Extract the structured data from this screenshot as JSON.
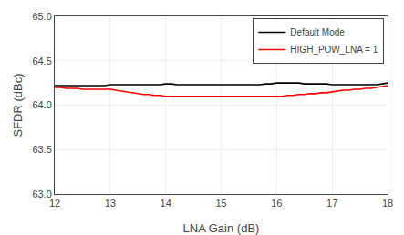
{
  "chart_data": {
    "type": "line",
    "xlabel": "LNA Gain (dB)",
    "ylabel": "SFDR (dBc)",
    "x": [
      12.0,
      12.1,
      12.2,
      12.3,
      12.4,
      12.5,
      12.6,
      12.7,
      12.8,
      12.9,
      13.0,
      13.1,
      13.2,
      13.3,
      13.4,
      13.5,
      13.6,
      13.7,
      13.8,
      13.9,
      14.0,
      14.1,
      14.2,
      14.3,
      14.4,
      14.5,
      14.6,
      14.7,
      14.8,
      14.9,
      15.0,
      15.1,
      15.2,
      15.3,
      15.4,
      15.5,
      15.6,
      15.7,
      15.8,
      15.9,
      16.0,
      16.1,
      16.2,
      16.3,
      16.4,
      16.5,
      16.6,
      16.7,
      16.8,
      16.9,
      17.0,
      17.1,
      17.2,
      17.3,
      17.4,
      17.5,
      17.6,
      17.7,
      17.8,
      17.9,
      18.0
    ],
    "series": [
      {
        "name": "Default Mode",
        "color": "black",
        "values": [
          64.22,
          64.22,
          64.22,
          64.22,
          64.22,
          64.22,
          64.22,
          64.22,
          64.22,
          64.22,
          64.23,
          64.23,
          64.23,
          64.23,
          64.23,
          64.23,
          64.23,
          64.23,
          64.23,
          64.23,
          64.24,
          64.24,
          64.23,
          64.23,
          64.23,
          64.23,
          64.23,
          64.23,
          64.23,
          64.23,
          64.23,
          64.23,
          64.23,
          64.23,
          64.23,
          64.23,
          64.23,
          64.23,
          64.24,
          64.24,
          64.25,
          64.25,
          64.25,
          64.25,
          64.25,
          64.24,
          64.24,
          64.24,
          64.24,
          64.24,
          64.23,
          64.23,
          64.23,
          64.23,
          64.23,
          64.23,
          64.23,
          64.23,
          64.23,
          64.24,
          64.25
        ]
      },
      {
        "name": "HIGH_POW_LNA = 1",
        "color": "red",
        "values": [
          64.2,
          64.2,
          64.19,
          64.19,
          64.19,
          64.18,
          64.18,
          64.18,
          64.18,
          64.18,
          64.18,
          64.17,
          64.16,
          64.15,
          64.14,
          64.13,
          64.12,
          64.12,
          64.11,
          64.11,
          64.1,
          64.1,
          64.1,
          64.1,
          64.1,
          64.1,
          64.1,
          64.1,
          64.1,
          64.1,
          64.1,
          64.1,
          64.1,
          64.1,
          64.1,
          64.1,
          64.1,
          64.1,
          64.1,
          64.1,
          64.1,
          64.1,
          64.11,
          64.11,
          64.12,
          64.12,
          64.13,
          64.13,
          64.14,
          64.14,
          64.15,
          64.16,
          64.17,
          64.17,
          64.18,
          64.18,
          64.19,
          64.19,
          64.2,
          64.21,
          64.22
        ]
      }
    ],
    "xlim": [
      12,
      18
    ],
    "ylim": [
      63,
      65
    ],
    "xticks": [
      12,
      13,
      14,
      15,
      16,
      17,
      18
    ],
    "yticks": [
      {
        "value": 63,
        "label": "63.0"
      },
      {
        "value": 63.5,
        "label": "63.5"
      },
      {
        "value": 64,
        "label": "64.0"
      },
      {
        "value": 64.5,
        "label": "64.5"
      },
      {
        "value": 65,
        "label": "65.0"
      }
    ],
    "grid": true,
    "legend": "upper right"
  }
}
